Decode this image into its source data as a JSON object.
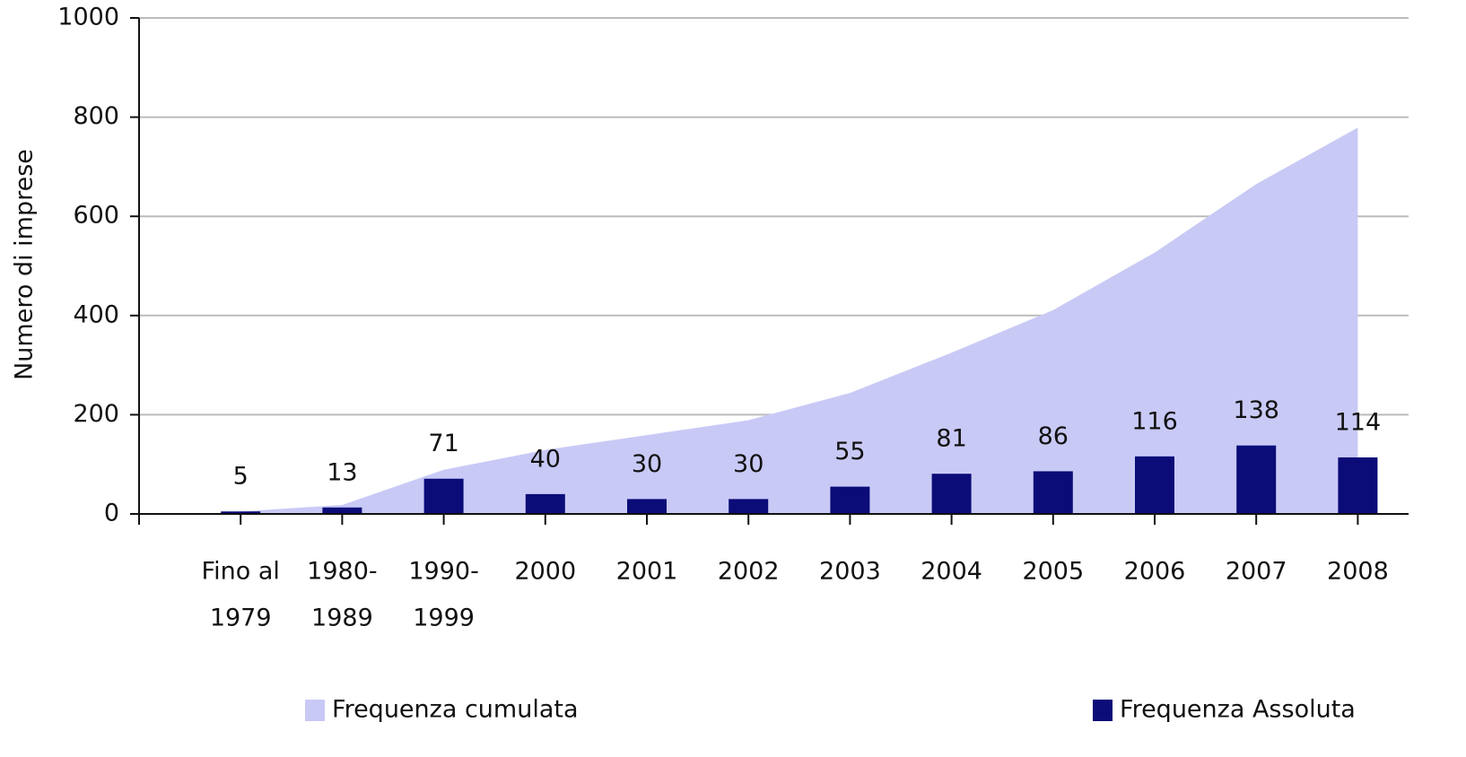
{
  "chart_data": {
    "type": "bar+area",
    "y_label": "Numero di imprese",
    "categories": [
      [
        "Fino al",
        "1979"
      ],
      [
        "1980-",
        "1989"
      ],
      [
        "1990-",
        "1999"
      ],
      [
        "2000"
      ],
      [
        "2001"
      ],
      [
        "2002"
      ],
      [
        "2003"
      ],
      [
        "2004"
      ],
      [
        "2005"
      ],
      [
        "2006"
      ],
      [
        "2007"
      ],
      [
        "2008"
      ]
    ],
    "series": [
      {
        "name": "Frequenza cumulata",
        "type": "area",
        "color": "#c9c9f6",
        "values": [
          5,
          18,
          89,
          129,
          159,
          189,
          244,
          325,
          411,
          527,
          665,
          779
        ]
      },
      {
        "name": "Frequenza Assoluta",
        "type": "bar",
        "color": "#0b0c78",
        "values": [
          5,
          13,
          71,
          40,
          30,
          30,
          55,
          81,
          86,
          116,
          138,
          114
        ]
      }
    ],
    "ylim": [
      0,
      1000
    ],
    "yticks": [
      0,
      200,
      400,
      600,
      800,
      1000
    ],
    "grid": true
  }
}
